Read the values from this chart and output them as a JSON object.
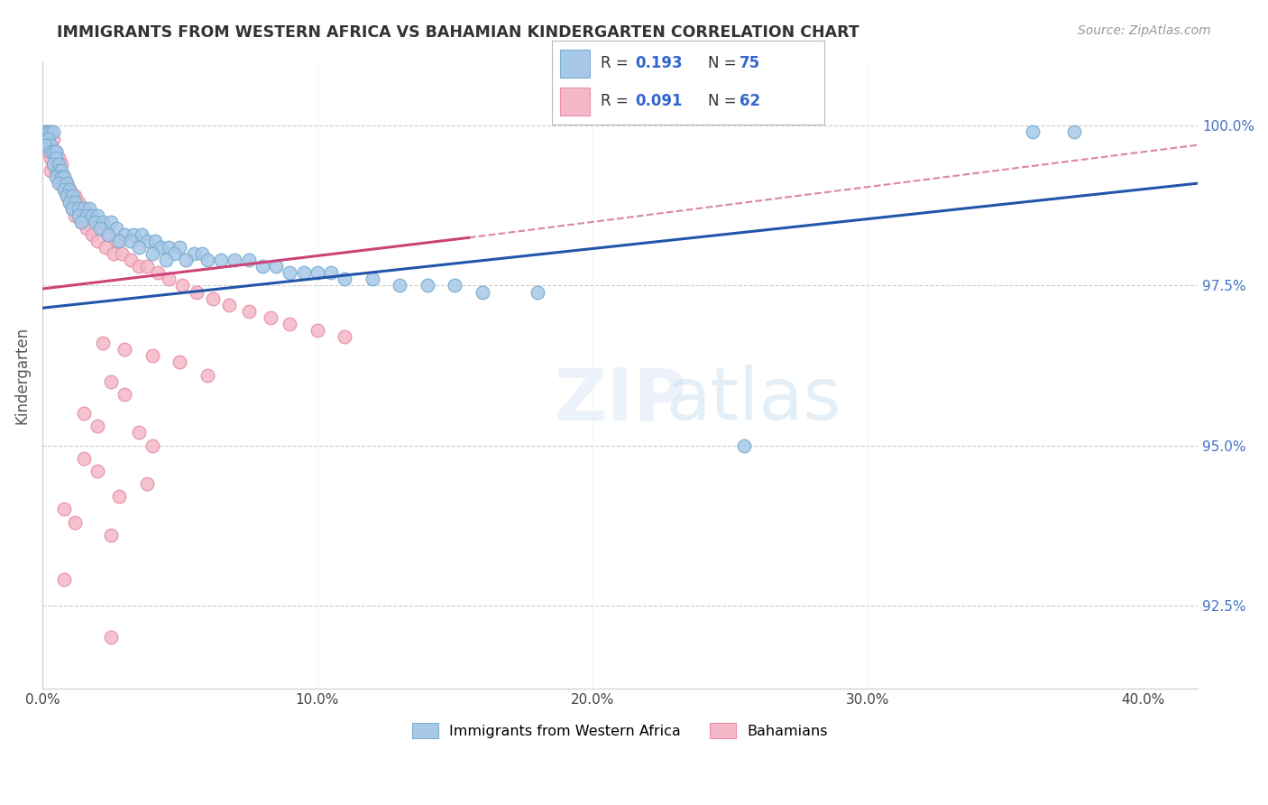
{
  "title": "IMMIGRANTS FROM WESTERN AFRICA VS BAHAMIAN KINDERGARTEN CORRELATION CHART",
  "source": "Source: ZipAtlas.com",
  "ylabel": "Kindergarten",
  "ytick_labels": [
    "92.5%",
    "95.0%",
    "97.5%",
    "100.0%"
  ],
  "ytick_values": [
    0.925,
    0.95,
    0.975,
    1.0
  ],
  "xtick_labels": [
    "0.0%",
    "10.0%",
    "20.0%",
    "30.0%",
    "40.0%"
  ],
  "xtick_values": [
    0.0,
    0.1,
    0.2,
    0.3,
    0.4
  ],
  "xlim": [
    0.0,
    0.42
  ],
  "ylim": [
    0.912,
    1.01
  ],
  "legend_label_blue": "Immigrants from Western Africa",
  "legend_label_pink": "Bahamians",
  "blue_color": "#a8c8e8",
  "pink_color": "#f4b8c8",
  "blue_edge_color": "#7aaed0",
  "pink_edge_color": "#e890a8",
  "blue_line_color": "#2255aa",
  "pink_line_color": "#cc4477",
  "blue_trendline": [
    [
      0.0,
      0.9715
    ],
    [
      0.42,
      0.991
    ]
  ],
  "pink_trendline_solid": [
    [
      0.0,
      0.9745
    ],
    [
      0.155,
      0.9825
    ]
  ],
  "pink_trendline_dash": [
    [
      0.155,
      0.9825
    ],
    [
      0.42,
      0.997
    ]
  ],
  "blue_scatter": [
    [
      0.001,
      0.999
    ],
    [
      0.002,
      0.999
    ],
    [
      0.003,
      0.999
    ],
    [
      0.004,
      0.999
    ],
    [
      0.002,
      0.998
    ],
    [
      0.003,
      0.997
    ],
    [
      0.001,
      0.997
    ],
    [
      0.003,
      0.996
    ],
    [
      0.004,
      0.996
    ],
    [
      0.005,
      0.996
    ],
    [
      0.005,
      0.995
    ],
    [
      0.004,
      0.994
    ],
    [
      0.006,
      0.994
    ],
    [
      0.006,
      0.993
    ],
    [
      0.007,
      0.993
    ],
    [
      0.005,
      0.992
    ],
    [
      0.007,
      0.992
    ],
    [
      0.008,
      0.992
    ],
    [
      0.006,
      0.991
    ],
    [
      0.009,
      0.991
    ],
    [
      0.008,
      0.99
    ],
    [
      0.01,
      0.99
    ],
    [
      0.009,
      0.989
    ],
    [
      0.011,
      0.989
    ],
    [
      0.01,
      0.988
    ],
    [
      0.012,
      0.988
    ],
    [
      0.011,
      0.987
    ],
    [
      0.013,
      0.987
    ],
    [
      0.015,
      0.987
    ],
    [
      0.017,
      0.987
    ],
    [
      0.013,
      0.986
    ],
    [
      0.016,
      0.986
    ],
    [
      0.018,
      0.986
    ],
    [
      0.02,
      0.986
    ],
    [
      0.014,
      0.985
    ],
    [
      0.019,
      0.985
    ],
    [
      0.022,
      0.985
    ],
    [
      0.025,
      0.985
    ],
    [
      0.021,
      0.984
    ],
    [
      0.027,
      0.984
    ],
    [
      0.024,
      0.983
    ],
    [
      0.03,
      0.983
    ],
    [
      0.033,
      0.983
    ],
    [
      0.036,
      0.983
    ],
    [
      0.028,
      0.982
    ],
    [
      0.032,
      0.982
    ],
    [
      0.038,
      0.982
    ],
    [
      0.041,
      0.982
    ],
    [
      0.035,
      0.981
    ],
    [
      0.043,
      0.981
    ],
    [
      0.046,
      0.981
    ],
    [
      0.05,
      0.981
    ],
    [
      0.04,
      0.98
    ],
    [
      0.048,
      0.98
    ],
    [
      0.055,
      0.98
    ],
    [
      0.058,
      0.98
    ],
    [
      0.045,
      0.979
    ],
    [
      0.052,
      0.979
    ],
    [
      0.06,
      0.979
    ],
    [
      0.065,
      0.979
    ],
    [
      0.07,
      0.979
    ],
    [
      0.075,
      0.979
    ],
    [
      0.08,
      0.978
    ],
    [
      0.085,
      0.978
    ],
    [
      0.09,
      0.977
    ],
    [
      0.095,
      0.977
    ],
    [
      0.1,
      0.977
    ],
    [
      0.105,
      0.977
    ],
    [
      0.11,
      0.976
    ],
    [
      0.12,
      0.976
    ],
    [
      0.13,
      0.975
    ],
    [
      0.14,
      0.975
    ],
    [
      0.15,
      0.975
    ],
    [
      0.16,
      0.974
    ],
    [
      0.18,
      0.974
    ],
    [
      0.36,
      0.999
    ],
    [
      0.375,
      0.999
    ],
    [
      0.255,
      0.95
    ]
  ],
  "pink_scatter": [
    [
      0.001,
      0.999
    ],
    [
      0.002,
      0.999
    ],
    [
      0.003,
      0.999
    ],
    [
      0.001,
      0.998
    ],
    [
      0.004,
      0.998
    ],
    [
      0.001,
      0.997
    ],
    [
      0.002,
      0.997
    ],
    [
      0.002,
      0.996
    ],
    [
      0.005,
      0.996
    ],
    [
      0.003,
      0.995
    ],
    [
      0.006,
      0.995
    ],
    [
      0.004,
      0.994
    ],
    [
      0.007,
      0.994
    ],
    [
      0.003,
      0.993
    ],
    [
      0.005,
      0.993
    ],
    [
      0.006,
      0.992
    ],
    [
      0.008,
      0.992
    ],
    [
      0.007,
      0.991
    ],
    [
      0.009,
      0.991
    ],
    [
      0.008,
      0.99
    ],
    [
      0.01,
      0.99
    ],
    [
      0.009,
      0.989
    ],
    [
      0.012,
      0.989
    ],
    [
      0.01,
      0.988
    ],
    [
      0.013,
      0.988
    ],
    [
      0.011,
      0.987
    ],
    [
      0.015,
      0.987
    ],
    [
      0.012,
      0.986
    ],
    [
      0.017,
      0.986
    ],
    [
      0.014,
      0.985
    ],
    [
      0.019,
      0.985
    ],
    [
      0.016,
      0.984
    ],
    [
      0.021,
      0.984
    ],
    [
      0.018,
      0.983
    ],
    [
      0.024,
      0.983
    ],
    [
      0.02,
      0.982
    ],
    [
      0.027,
      0.982
    ],
    [
      0.023,
      0.981
    ],
    [
      0.026,
      0.98
    ],
    [
      0.029,
      0.98
    ],
    [
      0.032,
      0.979
    ],
    [
      0.035,
      0.978
    ],
    [
      0.038,
      0.978
    ],
    [
      0.042,
      0.977
    ],
    [
      0.046,
      0.976
    ],
    [
      0.051,
      0.975
    ],
    [
      0.056,
      0.974
    ],
    [
      0.062,
      0.973
    ],
    [
      0.068,
      0.972
    ],
    [
      0.075,
      0.971
    ],
    [
      0.083,
      0.97
    ],
    [
      0.09,
      0.969
    ],
    [
      0.1,
      0.968
    ],
    [
      0.11,
      0.967
    ],
    [
      0.022,
      0.966
    ],
    [
      0.03,
      0.965
    ],
    [
      0.04,
      0.964
    ],
    [
      0.05,
      0.963
    ],
    [
      0.06,
      0.961
    ],
    [
      0.025,
      0.96
    ],
    [
      0.03,
      0.958
    ],
    [
      0.015,
      0.955
    ],
    [
      0.02,
      0.953
    ],
    [
      0.035,
      0.952
    ],
    [
      0.04,
      0.95
    ],
    [
      0.015,
      0.948
    ],
    [
      0.02,
      0.946
    ],
    [
      0.038,
      0.944
    ],
    [
      0.028,
      0.942
    ],
    [
      0.008,
      0.94
    ],
    [
      0.012,
      0.938
    ],
    [
      0.025,
      0.936
    ],
    [
      0.008,
      0.929
    ],
    [
      0.025,
      0.92
    ]
  ]
}
